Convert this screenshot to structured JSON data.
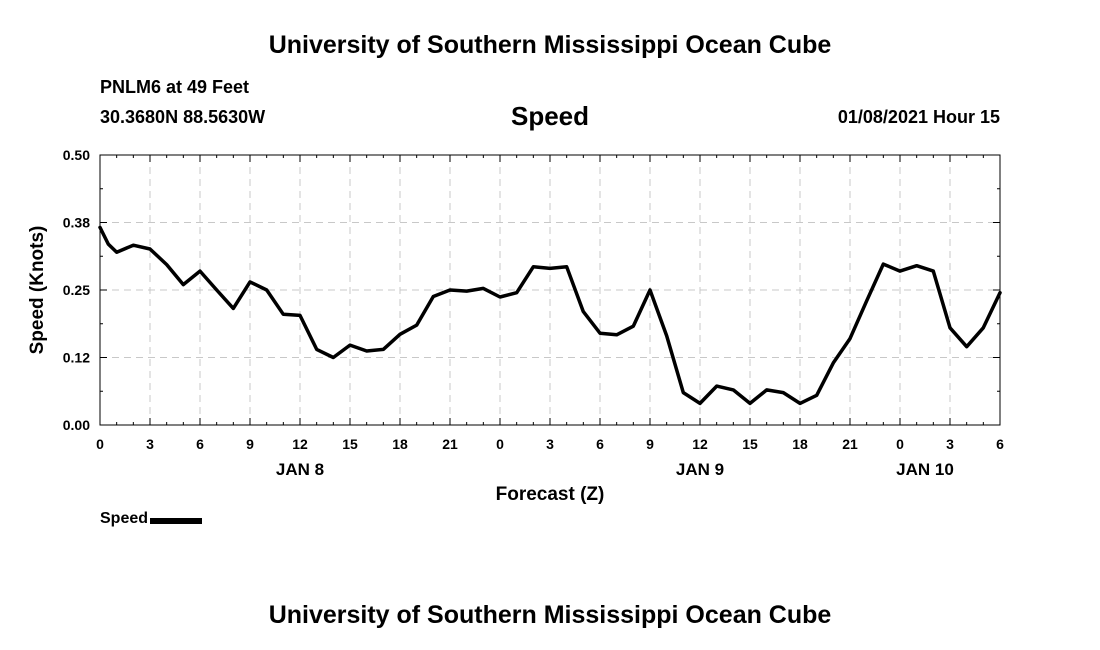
{
  "header": {
    "title": "University of Southern Mississippi Ocean Cube",
    "station": "PNLM6 at 49 Feet",
    "coordinates": "30.3680N 88.5630W",
    "variable": "Speed",
    "timestamp": "01/08/2021 Hour 15"
  },
  "footer": {
    "title": "University of Southern Mississippi Ocean Cube"
  },
  "legend": {
    "label": "Speed",
    "color": "#000000"
  },
  "chart_data": {
    "type": "line",
    "title": "Speed",
    "xlabel": "Forecast (Z)",
    "ylabel": "Speed (Knots)",
    "ylim": [
      0,
      0.5
    ],
    "yticks": [
      "0.00",
      "0.12",
      "0.25",
      "0.38",
      "0.50"
    ],
    "xlim": [
      0,
      54
    ],
    "xticks": [
      "0",
      "3",
      "6",
      "9",
      "12",
      "15",
      "18",
      "21",
      "0",
      "3",
      "6",
      "9",
      "12",
      "15",
      "18",
      "21",
      "0",
      "3",
      "6"
    ],
    "date_labels": [
      {
        "label": "JAN 8",
        "x": 12
      },
      {
        "label": "JAN 9",
        "x": 36
      },
      {
        "label": "JAN 10",
        "x": 49.5
      }
    ],
    "grid": true,
    "series": [
      {
        "name": "Speed",
        "color": "#000000",
        "x": [
          0,
          0.5,
          1,
          2,
          3,
          4,
          5,
          6,
          7,
          8,
          9,
          10,
          11,
          12,
          13,
          14,
          15,
          16,
          17,
          18,
          19,
          20,
          21,
          22,
          23,
          24,
          25,
          26,
          27,
          28,
          29,
          30,
          31,
          32,
          33,
          34,
          35,
          36,
          37,
          38,
          39,
          40,
          41,
          42,
          43,
          44,
          45,
          46,
          47,
          48,
          49,
          50,
          51,
          52,
          53,
          54
        ],
        "values": [
          0.366,
          0.335,
          0.32,
          0.333,
          0.326,
          0.297,
          0.26,
          0.285,
          0.25,
          0.216,
          0.265,
          0.25,
          0.205,
          0.203,
          0.14,
          0.125,
          0.148,
          0.137,
          0.14,
          0.168,
          0.185,
          0.238,
          0.25,
          0.248,
          0.253,
          0.237,
          0.245,
          0.293,
          0.29,
          0.293,
          0.21,
          0.17,
          0.167,
          0.183,
          0.25,
          0.165,
          0.06,
          0.04,
          0.072,
          0.065,
          0.04,
          0.065,
          0.06,
          0.04,
          0.055,
          0.115,
          0.16,
          0.23,
          0.298,
          0.285,
          0.295,
          0.285,
          0.18,
          0.145,
          0.18,
          0.245
        ]
      }
    ]
  }
}
